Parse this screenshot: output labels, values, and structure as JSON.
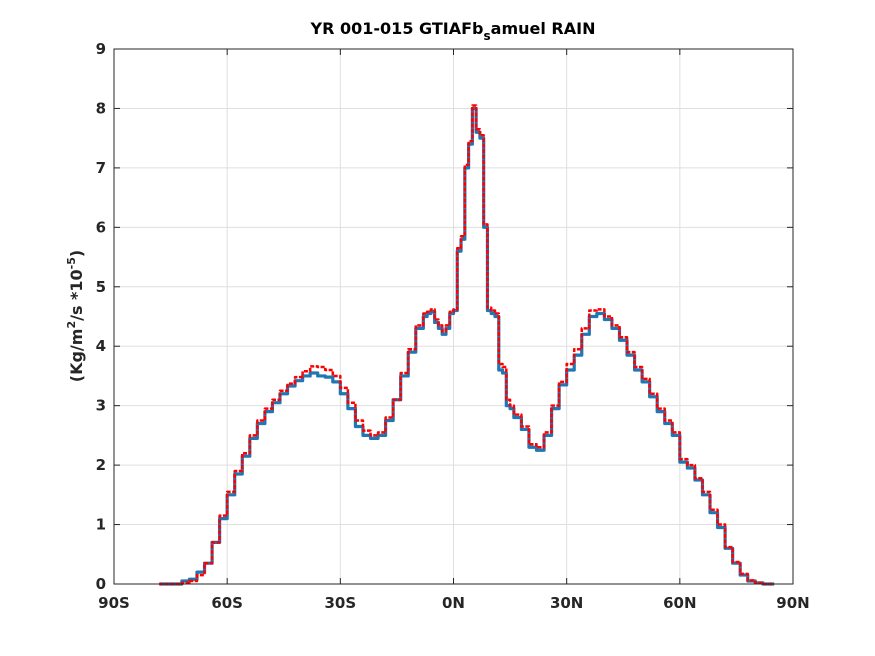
{
  "chart_data": {
    "type": "line",
    "title": "YR 001-015 GTIAFb",
    "title_sub": "s",
    "title_tail": "amuel RAIN",
    "ylabel_parts": [
      "(Kg/m",
      "2",
      "/s   *10",
      "-5",
      ")"
    ],
    "xlabel": "",
    "xlim": [
      -90,
      90
    ],
    "ylim": [
      0,
      9
    ],
    "xticks": [
      -90,
      -60,
      -30,
      0,
      30,
      60,
      90
    ],
    "xtick_labels": [
      "90S",
      "60S",
      "30S",
      "0N",
      "30N",
      "60N",
      "90N"
    ],
    "yticks": [
      0,
      1,
      2,
      3,
      4,
      5,
      6,
      7,
      8,
      9
    ],
    "ytick_labels": [
      "0",
      "1",
      "2",
      "3",
      "4",
      "5",
      "6",
      "7",
      "8",
      "9"
    ],
    "grid": true,
    "series": [
      {
        "color": "#1f77b4",
        "style": "solid",
        "x": [
          -78,
          -75,
          -72,
          -70,
          -68,
          -66,
          -64,
          -62,
          -60,
          -58,
          -56,
          -54,
          -52,
          -50,
          -48,
          -46,
          -44,
          -42,
          -40,
          -38,
          -36,
          -34,
          -32,
          -30,
          -28,
          -26,
          -24,
          -22,
          -20,
          -18,
          -16,
          -14,
          -12,
          -10,
          -8,
          -7,
          -6,
          -5,
          -4,
          -3,
          -2,
          -1,
          0,
          1,
          2,
          3,
          4,
          5,
          6,
          7,
          8,
          9,
          10,
          11,
          12,
          13,
          14,
          15,
          16,
          18,
          20,
          22,
          24,
          26,
          28,
          30,
          32,
          34,
          36,
          38,
          40,
          42,
          44,
          46,
          48,
          50,
          52,
          54,
          56,
          58,
          60,
          62,
          64,
          66,
          68,
          70,
          72,
          74,
          76,
          78,
          80,
          82,
          84,
          85
        ],
        "y": [
          0.0,
          0.0,
          0.05,
          0.08,
          0.2,
          0.35,
          0.7,
          1.1,
          1.5,
          1.85,
          2.15,
          2.45,
          2.7,
          2.9,
          3.05,
          3.2,
          3.33,
          3.42,
          3.5,
          3.55,
          3.5,
          3.48,
          3.4,
          3.2,
          2.95,
          2.65,
          2.5,
          2.45,
          2.5,
          2.75,
          3.1,
          3.5,
          3.9,
          4.3,
          4.5,
          4.55,
          4.58,
          4.4,
          4.3,
          4.2,
          4.3,
          4.55,
          4.6,
          5.6,
          5.8,
          7.0,
          7.4,
          8.0,
          7.6,
          7.5,
          6.0,
          4.6,
          4.55,
          4.5,
          3.6,
          3.55,
          3.0,
          2.95,
          2.8,
          2.6,
          2.3,
          2.25,
          2.5,
          2.95,
          3.35,
          3.6,
          3.85,
          4.2,
          4.5,
          4.55,
          4.45,
          4.3,
          4.1,
          3.85,
          3.6,
          3.4,
          3.15,
          2.9,
          2.7,
          2.5,
          2.05,
          1.95,
          1.75,
          1.5,
          1.2,
          0.95,
          0.6,
          0.35,
          0.15,
          0.05,
          0.02,
          0.0,
          0.0,
          0.0
        ]
      },
      {
        "color": "#ff0000",
        "style": "dashed",
        "x": [
          -78,
          -75,
          -72,
          -70,
          -68,
          -66,
          -64,
          -62,
          -60,
          -58,
          -56,
          -54,
          -52,
          -50,
          -48,
          -46,
          -44,
          -42,
          -40,
          -38,
          -36,
          -34,
          -32,
          -30,
          -28,
          -26,
          -24,
          -22,
          -20,
          -18,
          -16,
          -14,
          -12,
          -10,
          -8,
          -7,
          -6,
          -5,
          -4,
          -3,
          -2,
          -1,
          0,
          1,
          2,
          3,
          4,
          5,
          6,
          7,
          8,
          9,
          10,
          11,
          12,
          13,
          14,
          15,
          16,
          18,
          20,
          22,
          24,
          26,
          28,
          30,
          32,
          34,
          36,
          38,
          40,
          42,
          44,
          46,
          48,
          50,
          52,
          54,
          56,
          58,
          60,
          62,
          64,
          66,
          68,
          70,
          72,
          74,
          76,
          78,
          80,
          82,
          84,
          85
        ],
        "y": [
          0.0,
          0.0,
          0.02,
          0.05,
          0.15,
          0.35,
          0.7,
          1.15,
          1.55,
          1.9,
          2.2,
          2.5,
          2.75,
          2.95,
          3.1,
          3.25,
          3.37,
          3.48,
          3.58,
          3.66,
          3.65,
          3.6,
          3.5,
          3.3,
          3.05,
          2.75,
          2.58,
          2.5,
          2.55,
          2.8,
          3.1,
          3.55,
          3.95,
          4.35,
          4.55,
          4.58,
          4.62,
          4.45,
          4.35,
          4.25,
          4.35,
          4.58,
          4.62,
          5.65,
          5.85,
          7.05,
          7.45,
          8.05,
          7.65,
          7.55,
          6.05,
          4.65,
          4.6,
          4.55,
          3.7,
          3.65,
          3.1,
          3.0,
          2.85,
          2.65,
          2.35,
          2.3,
          2.55,
          3.0,
          3.4,
          3.7,
          3.95,
          4.3,
          4.6,
          4.62,
          4.5,
          4.35,
          4.15,
          3.9,
          3.65,
          3.45,
          3.2,
          2.95,
          2.75,
          2.55,
          2.1,
          2.0,
          1.78,
          1.55,
          1.25,
          1.0,
          0.62,
          0.37,
          0.17,
          0.06,
          0.02,
          0.0,
          0.0,
          0.0
        ]
      }
    ]
  }
}
